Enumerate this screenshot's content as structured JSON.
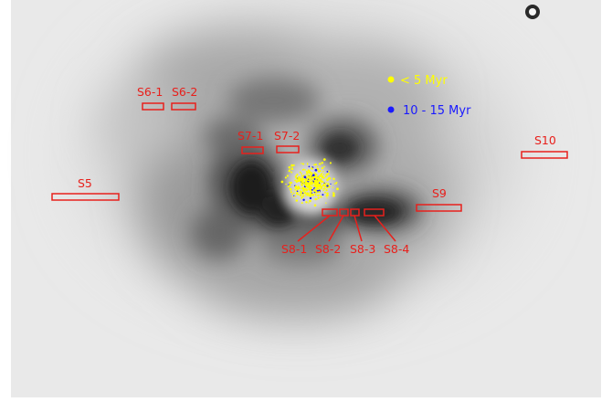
{
  "legend": {
    "young": {
      "label": "< 5 Myr",
      "color": "#ffff00"
    },
    "old": {
      "label": "10 - 15 Myr",
      "color": "#1a1aff"
    }
  },
  "slit_color": "#e8201c",
  "labels": {
    "s5": "S5",
    "s6_1": "S6-1",
    "s6_2": "S6-2",
    "s7_1": "S7-1",
    "s7_2": "S7-2",
    "s8_1": "S8-1",
    "s8_2": "S8-2",
    "s8_3": "S8-3",
    "s8_4": "S8-4",
    "s9": "S9",
    "s10": "S10"
  }
}
